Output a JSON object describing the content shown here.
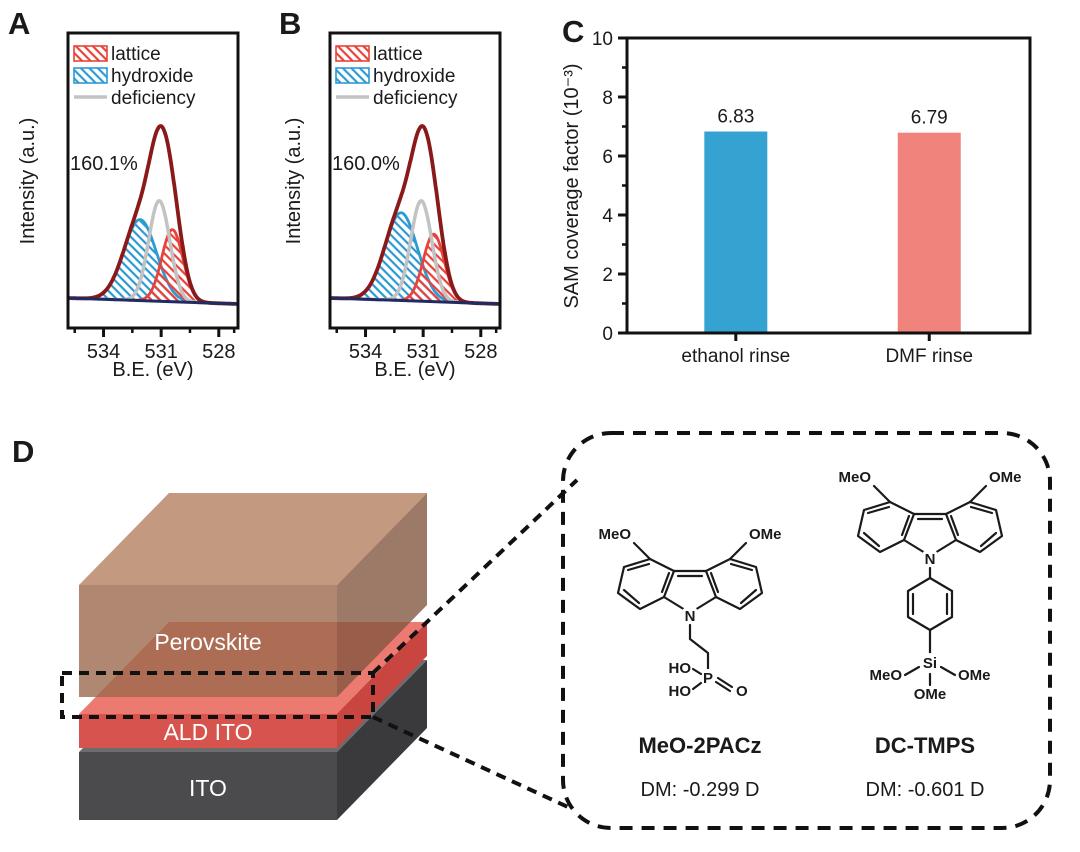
{
  "panels": {
    "a": {
      "label": "A",
      "annotation": "160.1%",
      "ylabel": "Intensity (a.u.)",
      "xlabel": "B.E. (eV)",
      "legend": {
        "lattice": "lattice",
        "hydroxide": "hydroxide",
        "deficiency": "deficiency"
      }
    },
    "b": {
      "label": "B",
      "annotation": "160.0%",
      "ylabel": "Intensity (a.u.)",
      "xlabel": "B.E. (eV)",
      "legend": {
        "lattice": "lattice",
        "hydroxide": "hydroxide",
        "deficiency": "deficiency"
      }
    },
    "c": {
      "label": "C",
      "ylabel": "SAM coverage factor (10⁻³)"
    },
    "d": {
      "label": "D",
      "layers": {
        "top": "Perovskite",
        "middle": "ALD ITO",
        "bottom": "ITO"
      },
      "molecules": [
        {
          "name": "MeO-2PACz",
          "dipole": "DM: -0.299 D",
          "atoms": {
            "meo": "MeO",
            "ome": "OMe",
            "n": "N",
            "ho_top": "HO",
            "ho_bottom": "HO",
            "p": "P",
            "o": "O"
          }
        },
        {
          "name": "DC-TMPS",
          "dipole": "DM: -0.601 D",
          "atoms": {
            "meo": "MeO",
            "ome": "OMe",
            "n": "N",
            "si": "Si",
            "meo_left": "MeO",
            "ome_right": "OMe",
            "ome_bottom": "OMe"
          }
        }
      ]
    }
  },
  "colors": {
    "envelope": "#8a1a1a",
    "lattice": "#e8423a",
    "hydroxide": "#2d9ad4",
    "deficiency": "#c3c3c3",
    "baseline": "#1f2b63",
    "bar_blue": "#35a3d2",
    "bar_salmon": "#f0837b",
    "perovskite_top": "#b4805f",
    "perovskite_front": "#9c6a4e",
    "perovskite_right": "#855741",
    "ald_top": "#ec7a70",
    "ald_front": "#d6544d",
    "ald_right": "#c9453f",
    "ito_top": "#6c6c6e",
    "ito_front": "#4b4b4d",
    "ito_right": "#3a3a3c"
  },
  "chart_data": [
    {
      "type": "area",
      "panel": "A",
      "title": "O 1s XPS peak fit",
      "xlabel": "B.E. (eV)",
      "ylabel": "Intensity (a.u.)",
      "annotation": "160.1%",
      "x_range": [
        535.85,
        527.0
      ],
      "x_ticks": [
        534,
        531,
        528
      ],
      "x_minor_ticks": [
        535.5,
        532.5,
        529.5,
        527.2
      ],
      "grid": false,
      "legend_position": "top-left",
      "peaks": [
        {
          "name": "hydroxide",
          "center": 532.1,
          "sigma": 0.85,
          "height": 0.3,
          "color": "#2d9ad4",
          "hatch": true
        },
        {
          "name": "lattice",
          "center": 530.42,
          "sigma": 0.55,
          "height": 0.267,
          "color": "#e8423a",
          "hatch": true
        },
        {
          "name": "deficiency",
          "center": 531.1,
          "sigma": 0.55,
          "height": 0.372,
          "color": "#c3c3c3",
          "hatch": false
        }
      ],
      "envelope_color": "#8a1a1a",
      "baseline_color": "#1f2b63"
    },
    {
      "type": "area",
      "panel": "B",
      "title": "O 1s XPS peak fit",
      "xlabel": "B.E. (eV)",
      "ylabel": "Intensity (a.u.)",
      "annotation": "160.0%",
      "x_range": [
        535.85,
        527.0
      ],
      "x_ticks": [
        534,
        531,
        528
      ],
      "x_minor_ticks": [
        535.5,
        532.5,
        529.5,
        527.2
      ],
      "grid": false,
      "legend_position": "top-left",
      "peaks": [
        {
          "name": "hydroxide",
          "center": 532.15,
          "sigma": 0.85,
          "height": 0.325,
          "color": "#2d9ad4",
          "hatch": true
        },
        {
          "name": "lattice",
          "center": 530.45,
          "sigma": 0.55,
          "height": 0.25,
          "color": "#e8423a",
          "hatch": true
        },
        {
          "name": "deficiency",
          "center": 531.1,
          "sigma": 0.55,
          "height": 0.372,
          "color": "#c3c3c3",
          "hatch": false
        }
      ],
      "envelope_color": "#8a1a1a",
      "baseline_color": "#1f2b63"
    },
    {
      "type": "bar",
      "panel": "C",
      "categories": [
        "ethanol rinse",
        "DMF rinse"
      ],
      "values": [
        6.83,
        6.79
      ],
      "value_labels": [
        "6.83",
        "6.79"
      ],
      "bar_colors": [
        "#35a3d2",
        "#f0837b"
      ],
      "bar_centers_frac": [
        0.27,
        0.75
      ],
      "ylim": [
        0,
        10
      ],
      "yticks": [
        0,
        2,
        4,
        6,
        8,
        10
      ],
      "ytick_labels": [
        "0",
        "2",
        "4",
        "6",
        "8",
        "10"
      ],
      "ylabel": "SAM coverage factor (10⁻³)",
      "xlabel": "",
      "grid": false
    }
  ]
}
